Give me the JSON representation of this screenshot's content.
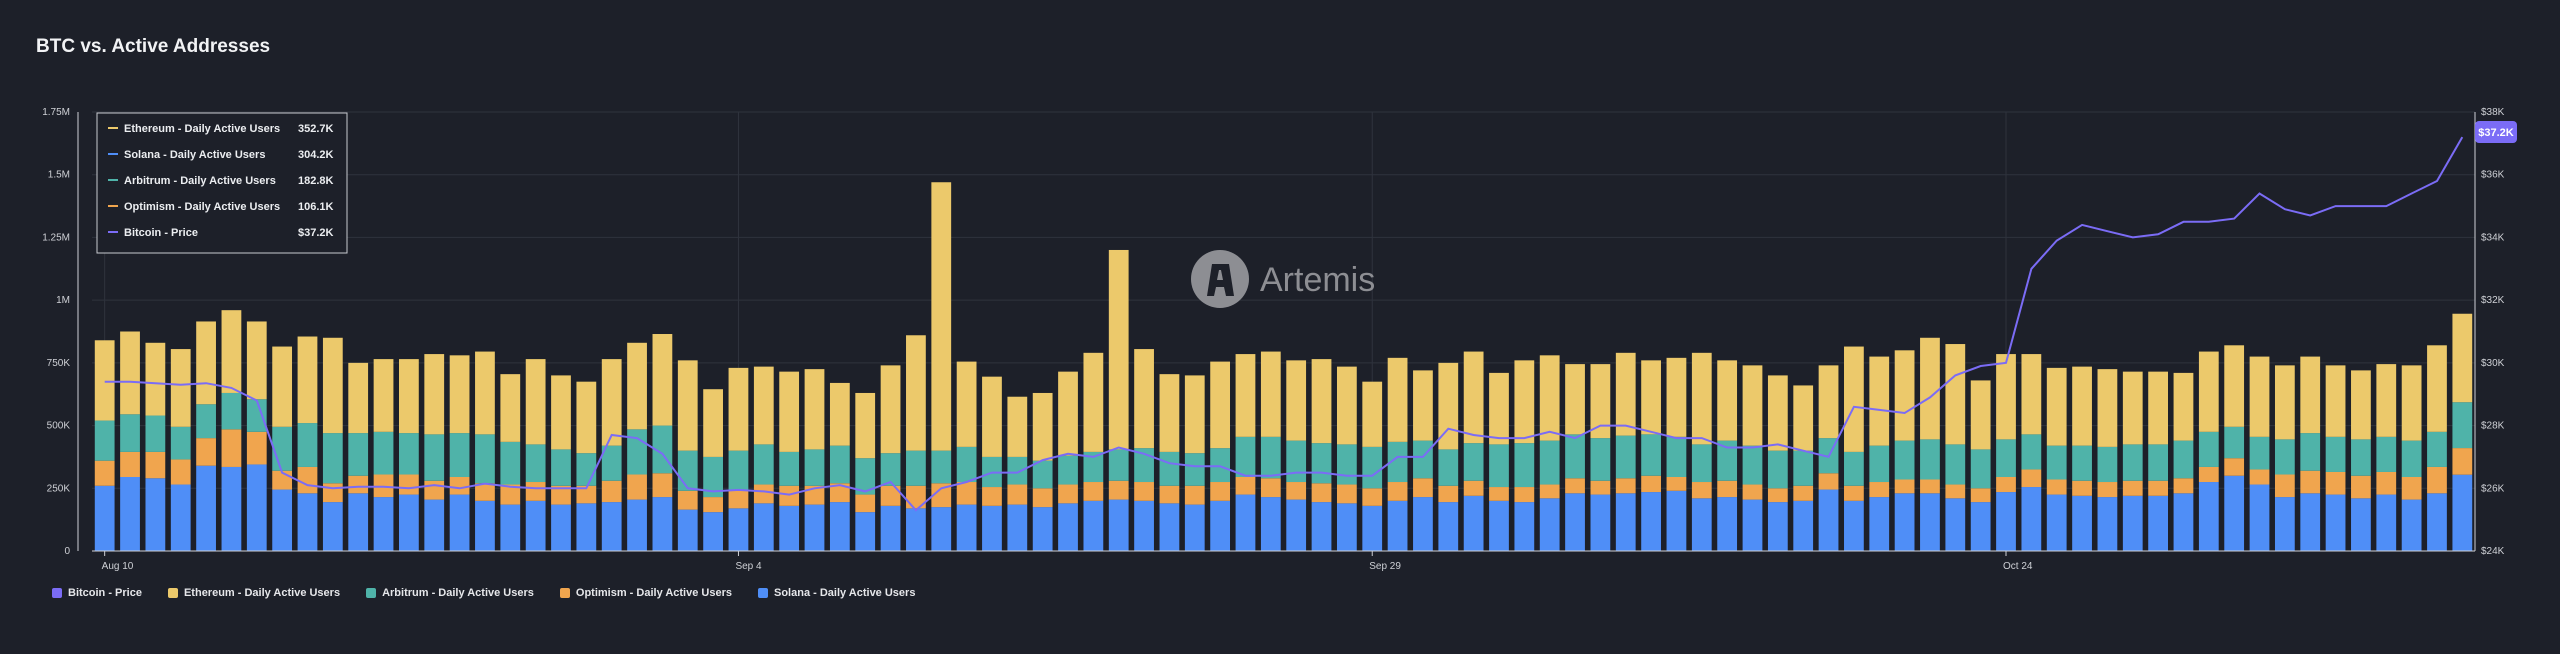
{
  "page": {
    "title": "BTC vs. Active Addresses"
  },
  "watermark": {
    "text": "Artemis",
    "icon": "artemis-logo-icon"
  },
  "colors": {
    "background": "#1d2029",
    "bitcoin": "#7b6cf6",
    "ethereum": "#ecc96b",
    "arbitrum": "#4fb3a9",
    "optimism": "#f0a54e",
    "solana": "#4f8ef7"
  },
  "tooltip": {
    "rows": [
      {
        "label": "Ethereum - Daily Active Users",
        "value": "352.7K",
        "color": "#ecc96b"
      },
      {
        "label": "Solana - Daily Active Users",
        "value": "304.2K",
        "color": "#4f8ef7"
      },
      {
        "label": "Arbitrum - Daily Active Users",
        "value": "182.8K",
        "color": "#4fb3a9"
      },
      {
        "label": "Optimism - Daily Active Users",
        "value": "106.1K",
        "color": "#f0a54e"
      },
      {
        "label": "Bitcoin - Price",
        "value": "$37.2K",
        "color": "#7b6cf6"
      }
    ]
  },
  "price_badge": {
    "text": "$37.2K"
  },
  "legend": [
    {
      "label": "Bitcoin - Price",
      "color": "#7b6cf6"
    },
    {
      "label": "Ethereum - Daily Active Users",
      "color": "#ecc96b"
    },
    {
      "label": "Arbitrum - Daily Active Users",
      "color": "#4fb3a9"
    },
    {
      "label": "Optimism - Daily Active Users",
      "color": "#f0a54e"
    },
    {
      "label": "Solana - Daily Active Users",
      "color": "#4f8ef7"
    }
  ],
  "chart_data": {
    "type": "bar",
    "stacked": true,
    "title": "BTC vs. Active Addresses",
    "x_tick_labels": [
      {
        "label": "Aug 10",
        "index": 0
      },
      {
        "label": "Sep 4",
        "index": 25
      },
      {
        "label": "Sep 29",
        "index": 50
      },
      {
        "label": "Oct 24",
        "index": 75
      }
    ],
    "y_left": {
      "range": [
        0,
        1750000
      ],
      "ticks": [
        "0",
        "250K",
        "500K",
        "750K",
        "1M",
        "1.25M",
        "1.5M",
        "1.75M"
      ]
    },
    "y_right": {
      "range": [
        24000,
        38000
      ],
      "ticks": [
        "$24K",
        "$26K",
        "$28K",
        "$30K",
        "$32K",
        "$34K",
        "$36K",
        "$38K"
      ]
    },
    "grid": true,
    "legend_position": "bottom-left",
    "series": [
      {
        "name": "Solana - Daily Active Users",
        "axis": "left",
        "values": [
          260000,
          295000,
          290000,
          265000,
          340000,
          335000,
          345000,
          245000,
          230000,
          195000,
          230000,
          215000,
          225000,
          205000,
          225000,
          200000,
          185000,
          200000,
          185000,
          190000,
          195000,
          205000,
          215000,
          165000,
          155000,
          170000,
          190000,
          180000,
          185000,
          195000,
          155000,
          180000,
          170000,
          175000,
          185000,
          180000,
          185000,
          175000,
          190000,
          200000,
          205000,
          200000,
          190000,
          185000,
          200000,
          225000,
          215000,
          205000,
          195000,
          190000,
          180000,
          200000,
          215000,
          195000,
          220000,
          200000,
          195000,
          210000,
          230000,
          225000,
          230000,
          235000,
          240000,
          210000,
          215000,
          205000,
          195000,
          200000,
          245000,
          200000,
          215000,
          230000,
          230000,
          210000,
          195000,
          235000,
          255000,
          225000,
          220000,
          215000,
          220000,
          220000,
          230000,
          275000,
          300000,
          265000,
          215000,
          230000,
          225000,
          210000,
          225000,
          205000,
          230000,
          304200
        ]
      },
      {
        "name": "Optimism - Daily Active Users",
        "axis": "left",
        "values": [
          100000,
          100000,
          105000,
          100000,
          110000,
          150000,
          130000,
          75000,
          105000,
          75000,
          70000,
          90000,
          80000,
          75000,
          70000,
          70000,
          80000,
          75000,
          75000,
          70000,
          85000,
          100000,
          95000,
          75000,
          60000,
          70000,
          75000,
          80000,
          75000,
          75000,
          70000,
          80000,
          90000,
          95000,
          90000,
          75000,
          80000,
          75000,
          75000,
          75000,
          75000,
          75000,
          70000,
          75000,
          75000,
          70000,
          75000,
          70000,
          75000,
          75000,
          70000,
          75000,
          75000,
          65000,
          60000,
          55000,
          60000,
          55000,
          60000,
          55000,
          60000,
          65000,
          55000,
          65000,
          65000,
          60000,
          55000,
          60000,
          65000,
          60000,
          60000,
          55000,
          55000,
          55000,
          55000,
          60000,
          70000,
          60000,
          60000,
          60000,
          60000,
          60000,
          60000,
          60000,
          70000,
          60000,
          90000,
          90000,
          90000,
          90000,
          90000,
          90000,
          105000,
          106100
        ]
      },
      {
        "name": "Arbitrum - Daily Active Users",
        "axis": "left",
        "values": [
          160000,
          150000,
          145000,
          130000,
          135000,
          145000,
          130000,
          175000,
          175000,
          200000,
          170000,
          170000,
          165000,
          185000,
          175000,
          195000,
          170000,
          150000,
          145000,
          130000,
          140000,
          180000,
          190000,
          160000,
          160000,
          160000,
          160000,
          135000,
          145000,
          150000,
          145000,
          130000,
          140000,
          130000,
          140000,
          120000,
          110000,
          110000,
          115000,
          120000,
          125000,
          135000,
          135000,
          130000,
          135000,
          160000,
          165000,
          165000,
          160000,
          160000,
          165000,
          160000,
          150000,
          145000,
          150000,
          170000,
          175000,
          175000,
          175000,
          170000,
          170000,
          165000,
          160000,
          150000,
          160000,
          155000,
          150000,
          140000,
          140000,
          135000,
          145000,
          155000,
          160000,
          160000,
          155000,
          150000,
          140000,
          135000,
          140000,
          140000,
          145000,
          145000,
          150000,
          140000,
          125000,
          130000,
          140000,
          150000,
          140000,
          145000,
          140000,
          145000,
          140000,
          182800
        ]
      },
      {
        "name": "Ethereum - Daily Active Users",
        "axis": "left",
        "values": [
          320000,
          330000,
          290000,
          310000,
          330000,
          330000,
          310000,
          320000,
          345000,
          380000,
          280000,
          290000,
          295000,
          320000,
          310000,
          330000,
          270000,
          340000,
          295000,
          285000,
          345000,
          345000,
          365000,
          360000,
          270000,
          330000,
          310000,
          320000,
          320000,
          250000,
          260000,
          350000,
          460000,
          1070000,
          340000,
          320000,
          240000,
          270000,
          335000,
          395000,
          795000,
          395000,
          310000,
          310000,
          345000,
          330000,
          340000,
          320000,
          335000,
          310000,
          260000,
          335000,
          280000,
          345000,
          365000,
          285000,
          330000,
          340000,
          280000,
          295000,
          330000,
          295000,
          315000,
          365000,
          320000,
          320000,
          300000,
          260000,
          290000,
          420000,
          355000,
          360000,
          405000,
          400000,
          275000,
          340000,
          320000,
          310000,
          315000,
          310000,
          290000,
          290000,
          270000,
          320000,
          325000,
          320000,
          295000,
          305000,
          285000,
          275000,
          290000,
          300000,
          345000,
          352700
        ]
      },
      {
        "name": "Bitcoin - Price",
        "axis": "right",
        "type": "line",
        "values": [
          29400,
          29400,
          29350,
          29300,
          29350,
          29200,
          28800,
          26500,
          26100,
          26000,
          26050,
          26050,
          26000,
          26100,
          26000,
          26150,
          26050,
          26000,
          26000,
          26000,
          27700,
          27600,
          27100,
          26000,
          25900,
          25950,
          25900,
          25800,
          26000,
          26100,
          25900,
          26200,
          25300,
          26000,
          26200,
          26500,
          26500,
          26900,
          27100,
          27000,
          27300,
          27100,
          26800,
          26700,
          26700,
          26400,
          26400,
          26500,
          26500,
          26400,
          26400,
          27000,
          27000,
          27900,
          27700,
          27600,
          27600,
          27800,
          27600,
          28000,
          28000,
          27800,
          27600,
          27600,
          27300,
          27300,
          27400,
          27200,
          27000,
          28600,
          28500,
          28400,
          28900,
          29600,
          29900,
          30000,
          33000,
          33900,
          34400,
          34200,
          34000,
          34100,
          34500,
          34500,
          34600,
          35400,
          34900,
          34700,
          35000,
          35000,
          35000,
          35400,
          35800,
          37200
        ]
      }
    ]
  }
}
